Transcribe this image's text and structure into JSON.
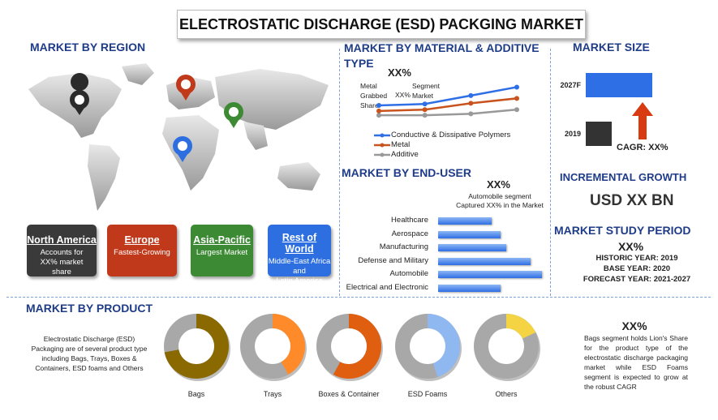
{
  "title": "ELECTROSTATIC DISCHARGE (ESD) PACKGING MARKET",
  "region": {
    "heading": "MARKET BY REGION",
    "cards": [
      {
        "name": "North America",
        "desc_lines": [
          "Accounts for",
          "XX% market",
          "share"
        ],
        "color": "#3a3a3a"
      },
      {
        "name": "Europe",
        "desc_lines": [
          "Fastest-Growing"
        ],
        "color": "#c0391b"
      },
      {
        "name": "Asia-Pacific",
        "desc_lines": [
          "Largest Market"
        ],
        "color": "#3c8a34"
      },
      {
        "name": "Rest of World",
        "desc_lines": [
          "Middle-East Africa",
          "and",
          "Latin America"
        ],
        "color": "#2d6fe0"
      }
    ]
  },
  "material": {
    "heading_line1": "MARKET BY MATERIAL & ADDITIVE",
    "heading_line2": "TYPE",
    "callout_value": "XX%",
    "callout_left": [
      "Metal",
      "Grabbed",
      "Share"
    ],
    "callout_mid": "XX%",
    "callout_right": [
      "Segment",
      "Market"
    ]
  },
  "enduser": {
    "heading": "MARKET BY  END-USER",
    "callout_value": "XX%",
    "callout_line1": "Automobile segment",
    "callout_line2": "Captured XX% in the Market"
  },
  "size": {
    "heading": "MARKET SIZE",
    "cagr": "CAGR: XX%",
    "incremental_heading": "INCREMENTAL GROWTH",
    "incremental_value": "USD XX BN"
  },
  "study": {
    "heading": "MARKET STUDY PERIOD",
    "value": "XX%",
    "historic": "HISTORIC YEAR: 2019",
    "base": "BASE YEAR: 2020",
    "forecast": "FORECAST YEAR: 2021-2027"
  },
  "product": {
    "heading": "MARKET BY PRODUCT",
    "description": "Electrostatic Discharge (ESD) Packaging are of several product type including Bags, Trays, Boxes & Containers, ESD foams and Others",
    "value": "XX%",
    "right_text": "Bags segment holds Lion's Share for the product type of the electrostatic discharge packaging market while ESD Foams segment is expected to grow at the robust CAGR"
  },
  "colors": {
    "heading_blue": "#1f3c88",
    "bar_blue": "#2f6fe6",
    "bar_dark": "#333333",
    "arrow_red": "#d83a12",
    "donut_gray": "#a8a8a8"
  },
  "chart_data": [
    {
      "type": "line",
      "x": [
        1,
        2,
        3,
        4
      ],
      "series": [
        {
          "name": "Conductive & Dissipative Polymers",
          "color": "#2f6fe6",
          "values": [
            3.0,
            3.2,
            4.4,
            5.6
          ]
        },
        {
          "name": "Metal",
          "color": "#c9531d",
          "values": [
            2.2,
            2.4,
            3.3,
            4.0
          ]
        },
        {
          "name": "Additive",
          "color": "#999999",
          "values": [
            1.6,
            1.6,
            1.8,
            2.4
          ]
        }
      ],
      "ylim": [
        0,
        6
      ],
      "legend": "bottom"
    },
    {
      "type": "bar",
      "orientation": "horizontal",
      "categories": [
        "Healthcare",
        "Aerospace",
        "Manufacturing",
        "Defense and Military",
        "Automobile",
        "Electrical and Electronic"
      ],
      "values": [
        30,
        35,
        38,
        52,
        58,
        35
      ],
      "xlim": [
        0,
        60
      ]
    },
    {
      "type": "bar",
      "orientation": "horizontal",
      "categories": [
        "2027F",
        "2019"
      ],
      "values": [
        100,
        39
      ],
      "xlim": [
        0,
        100
      ]
    },
    {
      "type": "pie",
      "donut": true,
      "charts": [
        {
          "label": "Bags",
          "share": 0.72,
          "color": "#8a6a00"
        },
        {
          "label": "Trays",
          "share": 0.42,
          "color": "#ff8a2a"
        },
        {
          "label": "Boxes & Container",
          "share": 0.58,
          "color": "#e05e10"
        },
        {
          "label": "ESD Foams",
          "share": 0.45,
          "color": "#8fb8f0"
        },
        {
          "label": "Others",
          "share": 0.18,
          "color": "#f4d442"
        }
      ]
    }
  ]
}
